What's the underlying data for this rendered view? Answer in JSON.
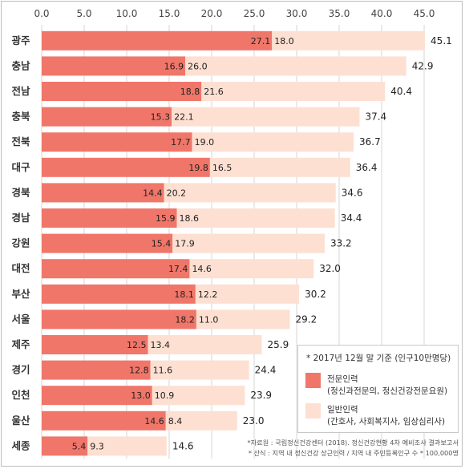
{
  "chart_data": {
    "type": "bar",
    "orientation": "horizontal",
    "stacked": true,
    "categories": [
      "광주",
      "충남",
      "전남",
      "충북",
      "전북",
      "대구",
      "경북",
      "경남",
      "강원",
      "대전",
      "부산",
      "서울",
      "제주",
      "경기",
      "인천",
      "울산",
      "세종"
    ],
    "series": [
      {
        "name": "전문인력",
        "values": [
          27.1,
          16.9,
          18.8,
          15.3,
          17.7,
          19.8,
          14.4,
          15.9,
          15.4,
          17.4,
          18.1,
          18.2,
          12.5,
          12.8,
          13.0,
          14.6,
          5.4
        ]
      },
      {
        "name": "일반인력",
        "values": [
          18.0,
          26.0,
          21.6,
          22.1,
          19.0,
          16.5,
          20.2,
          18.6,
          17.9,
          14.6,
          12.2,
          11.0,
          13.4,
          11.6,
          10.9,
          8.4,
          9.3
        ]
      }
    ],
    "totals": [
      "45.1",
      "42.9",
      "40.4",
      "37.4",
      "36.7",
      "36.4",
      "34.6",
      "34.4",
      "33.2",
      "32.0",
      "30.2",
      "29.2",
      "25.9",
      "24.4",
      "23.9",
      "23.0",
      "14.6"
    ],
    "series_labels": [
      [
        "27.1",
        "16.9",
        "18.8",
        "15.3",
        "17.7",
        "19.8",
        "14.4",
        "15.9",
        "15.4",
        "17.4",
        "18.1",
        "18.2",
        "12.5",
        "12.8",
        "13.0",
        "14.6",
        "5.4"
      ],
      [
        "18.0",
        "26.0",
        "21.6",
        "22.1",
        "19.0",
        "16.5",
        "20.2",
        "18.6",
        "17.9",
        "14.6",
        "12.2",
        "11.0",
        "13.4",
        "11.6",
        "10.9",
        "8.4",
        "9.3"
      ]
    ],
    "xlim": [
      0,
      45
    ],
    "xticks": [
      "0.0",
      "5.0",
      "10.0",
      "15.0",
      "20.0",
      "25.0",
      "30.0",
      "35.0",
      "40.0",
      "45.0"
    ],
    "colors": [
      "#f0766a",
      "#fde0d2"
    ],
    "grid": true,
    "legend_position": "bottom-right"
  },
  "legend": {
    "note": "* 2017년 12월 말 기준 (인구10만명당)",
    "items": [
      {
        "label": "전문인력",
        "desc": "(정신과전문의, 정신건강전문요원)",
        "color": "#f0766a"
      },
      {
        "label": "일반인력",
        "desc": "(간호사, 사회복지사, 임상심리사)",
        "color": "#fde0d2"
      }
    ]
  },
  "sources": {
    "line1": "*자료원 : 국립정신건강센터 (2018). 정신건강현황 4차 예비조사 결과보고서",
    "line2": "* 산식 : 지역 내 정신건강 상근인력 / 지역 내 주민등록인구 수 * 100,000명"
  }
}
